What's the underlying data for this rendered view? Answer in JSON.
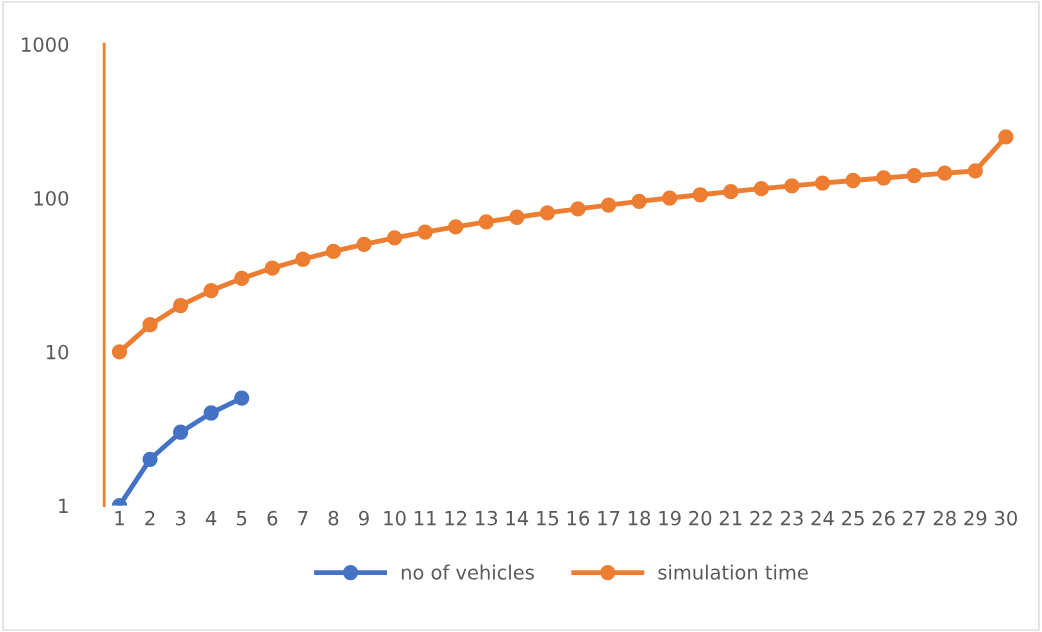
{
  "chart_data": {
    "type": "line",
    "categories": [
      "1",
      "2",
      "3",
      "4",
      "5",
      "6",
      "7",
      "8",
      "9",
      "10",
      "11",
      "12",
      "13",
      "14",
      "15",
      "16",
      "17",
      "18",
      "19",
      "20",
      "21",
      "22",
      "23",
      "24",
      "25",
      "26",
      "27",
      "28",
      "29",
      "30"
    ],
    "series": [
      {
        "name": "no of vehicles",
        "color": "#4472c4",
        "values": [
          1,
          2,
          3,
          4,
          5,
          null,
          null,
          null,
          null,
          null,
          null,
          null,
          null,
          null,
          null,
          null,
          null,
          null,
          null,
          null,
          null,
          null,
          null,
          null,
          null,
          null,
          null,
          null,
          null,
          null
        ]
      },
      {
        "name": "simulation time",
        "color": "#ed7d31",
        "values": [
          10,
          15,
          20,
          25,
          30,
          35,
          40,
          45,
          50,
          55,
          60,
          65,
          70,
          75,
          80,
          85,
          90,
          95,
          100,
          105,
          110,
          115,
          120,
          125,
          130,
          135,
          140,
          145,
          150,
          250
        ]
      }
    ],
    "log": "y",
    "ylim": [
      1,
      1000
    ],
    "yticks": [
      1,
      10,
      100,
      1000
    ],
    "grid": false,
    "legend": "bottom",
    "marker": "circle",
    "line_style": "solid"
  }
}
